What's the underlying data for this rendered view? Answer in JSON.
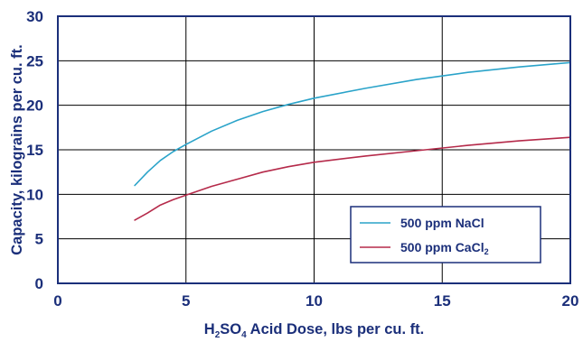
{
  "chart_data": {
    "type": "line",
    "title": "",
    "xlabel": {
      "parts": [
        "H",
        "2",
        "SO",
        "4",
        " Acid Dose, lbs per cu. ft."
      ]
    },
    "ylabel": "Capacity, kilograins per cu. ft.",
    "xlim": [
      0,
      20
    ],
    "ylim": [
      0,
      30
    ],
    "xticks": [
      0,
      5,
      10,
      15,
      20
    ],
    "yticks": [
      0,
      5,
      10,
      15,
      20,
      25,
      30
    ],
    "grid": true,
    "legend_position": "bottom-right",
    "series": [
      {
        "name": "500 ppm NaCl",
        "label_parts": [
          "500 ppm NaCl"
        ],
        "color": "#2aa3c9",
        "x": [
          3,
          3.5,
          4,
          4.5,
          5,
          6,
          7,
          8,
          9,
          10,
          12,
          14,
          16,
          18,
          20
        ],
        "y": [
          11.0,
          12.5,
          13.8,
          14.8,
          15.6,
          17.1,
          18.3,
          19.3,
          20.1,
          20.8,
          21.9,
          22.9,
          23.7,
          24.3,
          24.8
        ]
      },
      {
        "name": "500 ppm CaCl2",
        "label_parts": [
          "500 ppm CaCl",
          "2"
        ],
        "color": "#b52a4a",
        "x": [
          3,
          3.5,
          4,
          4.5,
          5,
          6,
          7,
          8,
          9,
          10,
          12,
          14,
          16,
          18,
          20
        ],
        "y": [
          7.1,
          7.9,
          8.8,
          9.4,
          9.9,
          10.9,
          11.7,
          12.5,
          13.1,
          13.6,
          14.3,
          14.9,
          15.5,
          16.0,
          16.4
        ]
      }
    ]
  }
}
